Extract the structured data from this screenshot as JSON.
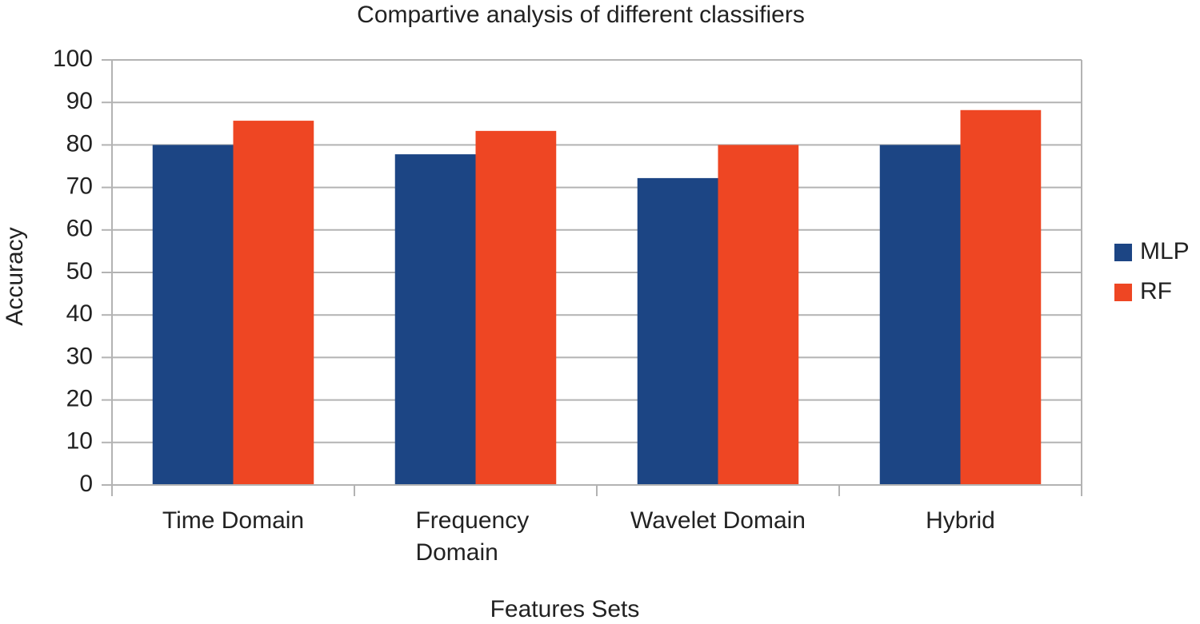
{
  "chart_data": {
    "type": "bar",
    "title": "Compartive analysis of different classifiers",
    "x_label": "Features Sets",
    "y_label": "Accuracy",
    "categories": [
      "Time Domain",
      "Frequency Domain",
      "Wavelet Domain",
      "Hybrid"
    ],
    "series": [
      {
        "name": "MLP",
        "color": "#1c4584",
        "values": [
          80,
          77.8,
          72.2,
          80
        ]
      },
      {
        "name": "RF",
        "color": "#ee4623",
        "values": [
          85.7,
          83.3,
          80,
          88.2
        ]
      }
    ],
    "ylim": [
      0,
      100
    ],
    "yticks": [
      0,
      10,
      20,
      30,
      40,
      50,
      60,
      70,
      80,
      90,
      100
    ],
    "grid": true,
    "legend": "right"
  }
}
